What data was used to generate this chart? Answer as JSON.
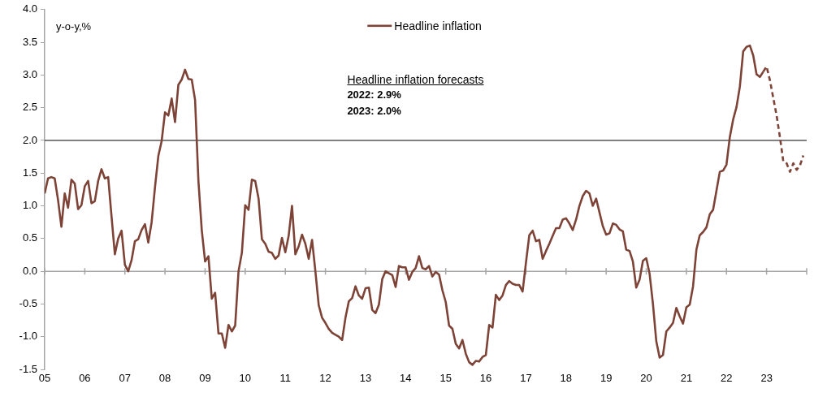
{
  "chart_data": {
    "type": "line",
    "ylabel": "y-o-y,%",
    "annotations": [
      "Headline inflation forecasts",
      "2022: 2.9%",
      "2023: 2.0%"
    ],
    "xlim": [
      "2005-01",
      "2024-01"
    ],
    "xticks": [
      {
        "value": "2005-01",
        "label": "05"
      },
      {
        "value": "2006-01",
        "label": "06"
      },
      {
        "value": "2007-01",
        "label": "07"
      },
      {
        "value": "2008-01",
        "label": "08"
      },
      {
        "value": "2009-01",
        "label": "09"
      },
      {
        "value": "2010-01",
        "label": "10"
      },
      {
        "value": "2011-01",
        "label": "11"
      },
      {
        "value": "2012-01",
        "label": "12"
      },
      {
        "value": "2013-01",
        "label": "13"
      },
      {
        "value": "2014-01",
        "label": "14"
      },
      {
        "value": "2015-01",
        "label": "15"
      },
      {
        "value": "2016-01",
        "label": "16"
      },
      {
        "value": "2017-01",
        "label": "17"
      },
      {
        "value": "2018-01",
        "label": "18"
      },
      {
        "value": "2019-01",
        "label": "19"
      },
      {
        "value": "2020-01",
        "label": "20"
      },
      {
        "value": "2021-01",
        "label": "21"
      },
      {
        "value": "2022-01",
        "label": "22"
      },
      {
        "value": "2023-01",
        "label": "23"
      },
      {
        "value": "2024-01",
        "label": null
      }
    ],
    "ylim": [
      -1.5,
      4
    ],
    "yticks": [
      {
        "value": -1.5,
        "label": "-1.5"
      },
      {
        "value": -1,
        "label": "-1.0"
      },
      {
        "value": -0.5,
        "label": "-0.5"
      },
      {
        "value": 0,
        "label": "0.0"
      },
      {
        "value": 0.5,
        "label": "0.5"
      },
      {
        "value": 1,
        "label": "1.0"
      },
      {
        "value": 1.5,
        "label": "1.5"
      },
      {
        "value": 2,
        "label": "2.0"
      },
      {
        "value": 2.5,
        "label": "2.5"
      },
      {
        "value": 3,
        "label": "3.0"
      },
      {
        "value": 3.5,
        "label": "3.5"
      },
      {
        "value": 4,
        "label": "4.0"
      }
    ],
    "ref_lines": [
      {
        "axis": "y",
        "value": 2,
        "color": "#000000"
      }
    ],
    "grid": false,
    "legend": "top",
    "line_style": "solid",
    "series": [
      {
        "name": "Headline inflation",
        "color": "#7e4337",
        "x": [
          "2005-01",
          "2005-02",
          "2005-03",
          "2005-04",
          "2005-05",
          "2005-06",
          "2005-07",
          "2005-08",
          "2005-09",
          "2005-10",
          "2005-11",
          "2005-12",
          "2006-01",
          "2006-02",
          "2006-03",
          "2006-04",
          "2006-05",
          "2006-06",
          "2006-07",
          "2006-08",
          "2006-09",
          "2006-10",
          "2006-11",
          "2006-12",
          "2007-01",
          "2007-02",
          "2007-03",
          "2007-04",
          "2007-05",
          "2007-06",
          "2007-07",
          "2007-08",
          "2007-09",
          "2007-10",
          "2007-11",
          "2007-12",
          "2008-01",
          "2008-02",
          "2008-03",
          "2008-04",
          "2008-05",
          "2008-06",
          "2008-07",
          "2008-08",
          "2008-09",
          "2008-10",
          "2008-11",
          "2008-12",
          "2009-01",
          "2009-02",
          "2009-03",
          "2009-04",
          "2009-05",
          "2009-06",
          "2009-07",
          "2009-08",
          "2009-09",
          "2009-10",
          "2009-11",
          "2009-12",
          "2010-01",
          "2010-02",
          "2010-03",
          "2010-04",
          "2010-05",
          "2010-06",
          "2010-07",
          "2010-08",
          "2010-09",
          "2010-10",
          "2010-11",
          "2010-12",
          "2011-01",
          "2011-02",
          "2011-03",
          "2011-04",
          "2011-05",
          "2011-06",
          "2011-07",
          "2011-08",
          "2011-09",
          "2011-10",
          "2011-11",
          "2011-12",
          "2012-01",
          "2012-02",
          "2012-03",
          "2012-04",
          "2012-05",
          "2012-06",
          "2012-07",
          "2012-08",
          "2012-09",
          "2012-10",
          "2012-11",
          "2012-12",
          "2013-01",
          "2013-02",
          "2013-03",
          "2013-04",
          "2013-05",
          "2013-06",
          "2013-07",
          "2013-08",
          "2013-09",
          "2013-10",
          "2013-11",
          "2013-12",
          "2014-01",
          "2014-02",
          "2014-03",
          "2014-04",
          "2014-05",
          "2014-06",
          "2014-07",
          "2014-08",
          "2014-09",
          "2014-10",
          "2014-11",
          "2014-12",
          "2015-01",
          "2015-02",
          "2015-03",
          "2015-04",
          "2015-05",
          "2015-06",
          "2015-07",
          "2015-08",
          "2015-09",
          "2015-10",
          "2015-11",
          "2015-12",
          "2016-01",
          "2016-02",
          "2016-03",
          "2016-04",
          "2016-05",
          "2016-06",
          "2016-07",
          "2016-08",
          "2016-09",
          "2016-10",
          "2016-11",
          "2016-12",
          "2017-01",
          "2017-02",
          "2017-03",
          "2017-04",
          "2017-05",
          "2017-06",
          "2017-07",
          "2017-08",
          "2017-09",
          "2017-10",
          "2017-11",
          "2017-12",
          "2018-01",
          "2018-02",
          "2018-03",
          "2018-04",
          "2018-05",
          "2018-06",
          "2018-07",
          "2018-08",
          "2018-09",
          "2018-10",
          "2018-11",
          "2018-12",
          "2019-01",
          "2019-02",
          "2019-03",
          "2019-04",
          "2019-05",
          "2019-06",
          "2019-07",
          "2019-08",
          "2019-09",
          "2019-10",
          "2019-11",
          "2019-12",
          "2020-01",
          "2020-02",
          "2020-03",
          "2020-04",
          "2020-05",
          "2020-06",
          "2020-07",
          "2020-08",
          "2020-09",
          "2020-10",
          "2020-11",
          "2020-12",
          "2021-01",
          "2021-02",
          "2021-03",
          "2021-04",
          "2021-05",
          "2021-06",
          "2021-07",
          "2021-08",
          "2021-09",
          "2021-10",
          "2021-11",
          "2021-12",
          "2022-01",
          "2022-02",
          "2022-03",
          "2022-04",
          "2022-05",
          "2022-06",
          "2022-07",
          "2022-08",
          "2022-09",
          "2022-10",
          "2022-11",
          "2022-12"
        ],
        "values": [
          1.19,
          1.42,
          1.44,
          1.42,
          1.09,
          0.68,
          1.19,
          0.97,
          1.4,
          1.34,
          0.95,
          1.01,
          1.3,
          1.38,
          1.04,
          1.07,
          1.38,
          1.56,
          1.42,
          1.44,
          0.84,
          0.26,
          0.5,
          0.62,
          0.1,
          0.0,
          0.17,
          0.46,
          0.49,
          0.63,
          0.72,
          0.44,
          0.75,
          1.28,
          1.76,
          1.99,
          2.43,
          2.38,
          2.64,
          2.28,
          2.85,
          2.93,
          3.08,
          2.94,
          2.93,
          2.62,
          1.38,
          0.63,
          0.15,
          0.23,
          -0.42,
          -0.33,
          -0.95,
          -0.95,
          -1.17,
          -0.82,
          -0.92,
          -0.83,
          0.0,
          0.28,
          1.01,
          0.94,
          1.4,
          1.38,
          1.11,
          0.49,
          0.42,
          0.3,
          0.28,
          0.19,
          0.24,
          0.51,
          0.29,
          0.54,
          1.0,
          0.26,
          0.38,
          0.56,
          0.42,
          0.19,
          0.48,
          0.0,
          -0.52,
          -0.71,
          -0.79,
          -0.88,
          -0.94,
          -0.97,
          -1.0,
          -1.05,
          -0.71,
          -0.46,
          -0.41,
          -0.23,
          -0.37,
          -0.42,
          -0.26,
          -0.25,
          -0.59,
          -0.64,
          -0.51,
          -0.12,
          0.0,
          -0.03,
          -0.06,
          -0.24,
          0.08,
          0.06,
          0.06,
          -0.13,
          -0.01,
          0.05,
          0.23,
          0.05,
          0.03,
          0.08,
          -0.08,
          -0.01,
          -0.05,
          -0.29,
          -0.47,
          -0.83,
          -0.88,
          -1.11,
          -1.18,
          -1.05,
          -1.26,
          -1.39,
          -1.43,
          -1.37,
          -1.38,
          -1.31,
          -1.28,
          -0.82,
          -0.86,
          -0.36,
          -0.44,
          -0.37,
          -0.21,
          -0.15,
          -0.19,
          -0.21,
          -0.21,
          -0.31,
          0.13,
          0.55,
          0.62,
          0.46,
          0.48,
          0.19,
          0.31,
          0.42,
          0.54,
          0.66,
          0.66,
          0.79,
          0.81,
          0.73,
          0.63,
          0.79,
          1.0,
          1.15,
          1.23,
          1.19,
          1.0,
          1.11,
          0.9,
          0.69,
          0.56,
          0.58,
          0.73,
          0.71,
          0.64,
          0.61,
          0.33,
          0.31,
          0.15,
          -0.25,
          -0.13,
          0.16,
          0.2,
          -0.04,
          -0.5,
          -1.07,
          -1.32,
          -1.28,
          -0.92,
          -0.86,
          -0.79,
          -0.56,
          -0.69,
          -0.8,
          -0.55,
          -0.51,
          -0.23,
          0.33,
          0.55,
          0.6,
          0.67,
          0.87,
          0.94,
          1.23,
          1.52,
          1.54,
          1.63,
          2.05,
          2.32,
          2.51,
          2.82,
          3.36,
          3.43,
          3.45,
          3.3,
          3.01,
          2.97,
          3.05
        ]
      },
      {
        "color": "#7e4337",
        "line_style": "dashed",
        "x": [
          "2022-12",
          "2023-01",
          "2023-02",
          "2023-03",
          "2023-04",
          "2023-05",
          "2023-06",
          "2023-07",
          "2023-08",
          "2023-09",
          "2023-10",
          "2023-11",
          "2023-12"
        ],
        "values": [
          3.05,
          3.13,
          2.92,
          2.65,
          2.38,
          2.05,
          1.68,
          1.65,
          1.52,
          1.65,
          1.55,
          1.62,
          1.77
        ]
      }
    ]
  }
}
